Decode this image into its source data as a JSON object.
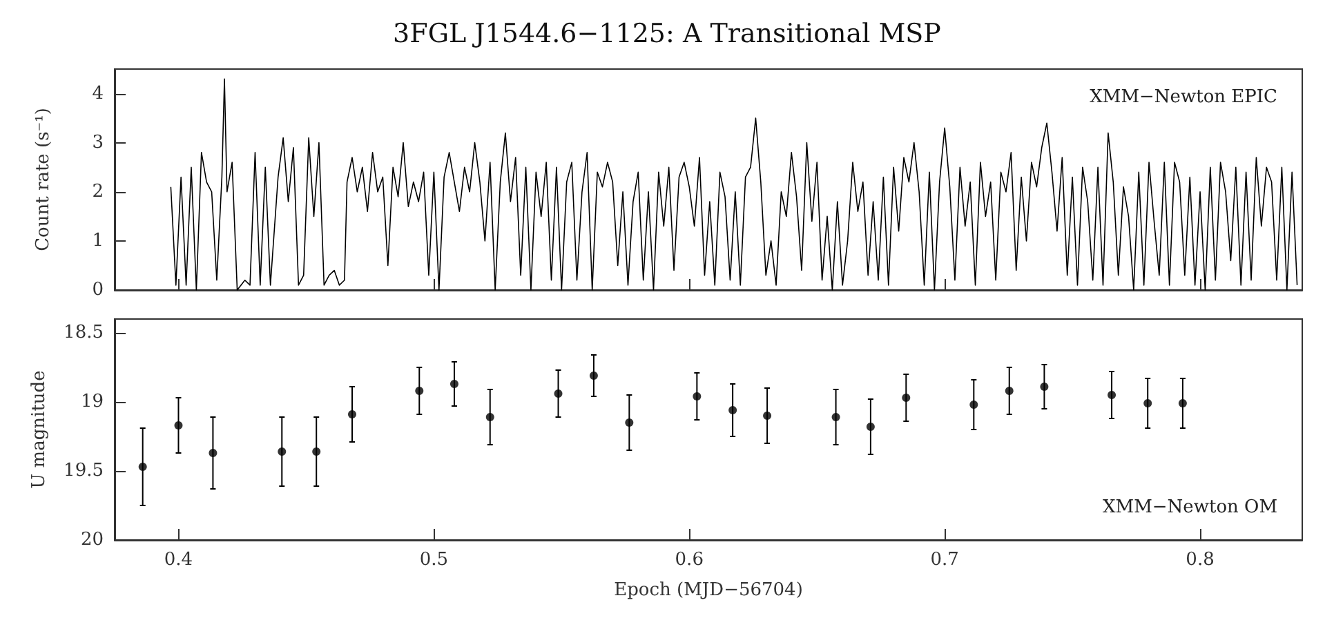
{
  "chart_data": [
    {
      "type": "line",
      "title": "3FGL J1544.6−1125: A Transitional MSP",
      "ylabel": "Count rate (s⁻¹)",
      "annotations": [
        "XMM−Newton EPIC"
      ],
      "xlim": [
        0.375,
        0.84
      ],
      "xticks": [
        0.4,
        0.5,
        0.6,
        0.7,
        0.8
      ],
      "ylim": [
        0,
        4.5
      ],
      "yticks": [
        0,
        1,
        2,
        3,
        4
      ],
      "tick_labels": "y",
      "grid": false,
      "series": [
        {
          "color": "#000000",
          "x": [
            0.397,
            0.399,
            0.401,
            0.403,
            0.405,
            0.407,
            0.409,
            0.411,
            0.413,
            0.415,
            0.417,
            0.418,
            0.419,
            0.421,
            0.423,
            0.426,
            0.428,
            0.43,
            0.432,
            0.434,
            0.436,
            0.439,
            0.441,
            0.443,
            0.445,
            0.447,
            0.449,
            0.451,
            0.453,
            0.455,
            0.457,
            0.459,
            0.461,
            0.463,
            0.465,
            0.466,
            0.468,
            0.47,
            0.472,
            0.474,
            0.476,
            0.478,
            0.48,
            0.482,
            0.484,
            0.486,
            0.488,
            0.49,
            0.492,
            0.494,
            0.496,
            0.498,
            0.5,
            0.502,
            0.504,
            0.506,
            0.508,
            0.51,
            0.512,
            0.514,
            0.516,
            0.518,
            0.52,
            0.522,
            0.524,
            0.526,
            0.528,
            0.53,
            0.532,
            0.534,
            0.536,
            0.538,
            0.54,
            0.542,
            0.544,
            0.546,
            0.548,
            0.55,
            0.552,
            0.554,
            0.556,
            0.558,
            0.56,
            0.562,
            0.564,
            0.566,
            0.568,
            0.57,
            0.572,
            0.574,
            0.576,
            0.578,
            0.58,
            0.582,
            0.584,
            0.586,
            0.588,
            0.59,
            0.592,
            0.594,
            0.596,
            0.598,
            0.6,
            0.602,
            0.604,
            0.606,
            0.608,
            0.61,
            0.612,
            0.614,
            0.616,
            0.618,
            0.62,
            0.622,
            0.624,
            0.626,
            0.628,
            0.63,
            0.632,
            0.634,
            0.636,
            0.638,
            0.64,
            0.642,
            0.644,
            0.646,
            0.648,
            0.65,
            0.652,
            0.654,
            0.656,
            0.658,
            0.66,
            0.662,
            0.664,
            0.666,
            0.668,
            0.67,
            0.672,
            0.674,
            0.676,
            0.678,
            0.68,
            0.682,
            0.684,
            0.686,
            0.688,
            0.69,
            0.692,
            0.694,
            0.696,
            0.698,
            0.7,
            0.702,
            0.704,
            0.706,
            0.708,
            0.71,
            0.712,
            0.714,
            0.716,
            0.718,
            0.72,
            0.722,
            0.724,
            0.726,
            0.728,
            0.73,
            0.732,
            0.734,
            0.736,
            0.738,
            0.74,
            0.742,
            0.744,
            0.746,
            0.748,
            0.75,
            0.752,
            0.754,
            0.756,
            0.758,
            0.76,
            0.762,
            0.764,
            0.766,
            0.768,
            0.77,
            0.772,
            0.774,
            0.776,
            0.778,
            0.78,
            0.782,
            0.784,
            0.786,
            0.788,
            0.79,
            0.792,
            0.794,
            0.796,
            0.798,
            0.8,
            0.802,
            0.804,
            0.806,
            0.808,
            0.81,
            0.812,
            0.814,
            0.816,
            0.818,
            0.82,
            0.822,
            0.824,
            0.826,
            0.828,
            0.83,
            0.832,
            0.834,
            0.836,
            0.838
          ],
          "values": [
            2.1,
            0.1,
            2.3,
            0.1,
            2.5,
            0.0,
            2.8,
            2.2,
            2.0,
            0.2,
            2.3,
            4.3,
            2.0,
            2.6,
            0.0,
            0.2,
            0.1,
            2.8,
            0.1,
            2.5,
            0.1,
            2.3,
            3.1,
            1.8,
            2.9,
            0.1,
            0.3,
            3.1,
            1.5,
            3.0,
            0.1,
            0.3,
            0.4,
            0.1,
            0.2,
            2.2,
            2.7,
            2.0,
            2.5,
            1.6,
            2.8,
            2.0,
            2.3,
            0.5,
            2.5,
            1.9,
            3.0,
            1.7,
            2.2,
            1.8,
            2.4,
            0.3,
            2.4,
            0.0,
            2.3,
            2.8,
            2.2,
            1.6,
            2.5,
            2.0,
            3.0,
            2.2,
            1.0,
            2.6,
            0.0,
            2.2,
            3.2,
            1.8,
            2.7,
            0.3,
            2.5,
            0.0,
            2.4,
            1.5,
            2.6,
            0.2,
            2.5,
            0.0,
            2.2,
            2.6,
            0.2,
            2.0,
            2.8,
            0.0,
            2.4,
            2.1,
            2.6,
            2.2,
            0.5,
            2.0,
            0.1,
            1.8,
            2.4,
            0.2,
            2.0,
            0.0,
            2.4,
            1.3,
            2.5,
            0.4,
            2.3,
            2.6,
            2.1,
            1.3,
            2.7,
            0.3,
            1.8,
            0.1,
            2.4,
            1.9,
            0.2,
            2.0,
            0.1,
            2.3,
            2.5,
            3.5,
            2.2,
            0.3,
            1.0,
            0.1,
            2.0,
            1.5,
            2.8,
            1.9,
            0.4,
            3.0,
            1.4,
            2.6,
            0.2,
            1.5,
            0.0,
            1.8,
            0.1,
            1.0,
            2.6,
            1.6,
            2.2,
            0.3,
            1.8,
            0.2,
            2.3,
            0.1,
            2.5,
            1.2,
            2.7,
            2.2,
            3.0,
            2.0,
            0.1,
            2.4,
            0.0,
            2.2,
            3.3,
            2.1,
            0.2,
            2.5,
            1.3,
            2.2,
            0.1,
            2.6,
            1.5,
            2.2,
            0.2,
            2.4,
            2.0,
            2.8,
            0.4,
            2.3,
            1.0,
            2.6,
            2.1,
            2.9,
            3.4,
            2.4,
            1.2,
            2.7,
            0.3,
            2.3,
            0.1,
            2.5,
            1.8,
            0.2,
            2.5,
            0.1,
            3.2,
            2.2,
            0.3,
            2.1,
            1.5,
            0.0,
            2.4,
            0.1,
            2.6,
            1.4,
            0.3,
            2.6,
            0.1,
            2.6,
            2.2,
            0.3,
            2.3,
            0.1,
            2.0,
            0.0,
            2.5,
            0.2,
            2.6,
            2.0,
            0.6,
            2.5,
            0.1,
            2.4,
            0.2,
            2.7,
            1.3,
            2.5,
            2.2,
            0.2,
            2.5,
            0.0,
            2.4,
            0.1
          ]
        }
      ]
    },
    {
      "type": "scatter",
      "xlabel": "Epoch (MJD−56704)",
      "ylabel": "U magnitude",
      "annotations": [
        "XMM−Newton OM"
      ],
      "xlim": [
        0.375,
        0.84
      ],
      "xticks": [
        0.4,
        0.5,
        0.6,
        0.7,
        0.8
      ],
      "ylim": [
        20,
        18.4
      ],
      "yticks": [
        18.5,
        19,
        19.5,
        20
      ],
      "grid": false,
      "marker": "circle",
      "series": [
        {
          "color": "#000000",
          "x": [
            0.386,
            0.4,
            0.4135,
            0.4405,
            0.454,
            0.468,
            0.4943,
            0.508,
            0.522,
            0.5487,
            0.5626,
            0.5765,
            0.603,
            0.617,
            0.6305,
            0.6574,
            0.671,
            0.6849,
            0.7114,
            0.7253,
            0.739,
            0.7654,
            0.7795,
            0.7932
          ],
          "values": [
            19.47,
            19.17,
            19.37,
            19.36,
            19.36,
            19.09,
            18.92,
            18.87,
            19.11,
            18.94,
            18.81,
            19.15,
            18.96,
            19.06,
            19.1,
            19.11,
            19.18,
            18.97,
            19.02,
            18.92,
            18.89,
            18.95,
            19.01,
            19.01
          ],
          "errors": [
            0.28,
            0.2,
            0.26,
            0.25,
            0.25,
            0.2,
            0.17,
            0.16,
            0.2,
            0.17,
            0.15,
            0.2,
            0.17,
            0.19,
            0.2,
            0.2,
            0.2,
            0.17,
            0.18,
            0.17,
            0.16,
            0.17,
            0.18,
            0.18
          ]
        }
      ]
    }
  ]
}
